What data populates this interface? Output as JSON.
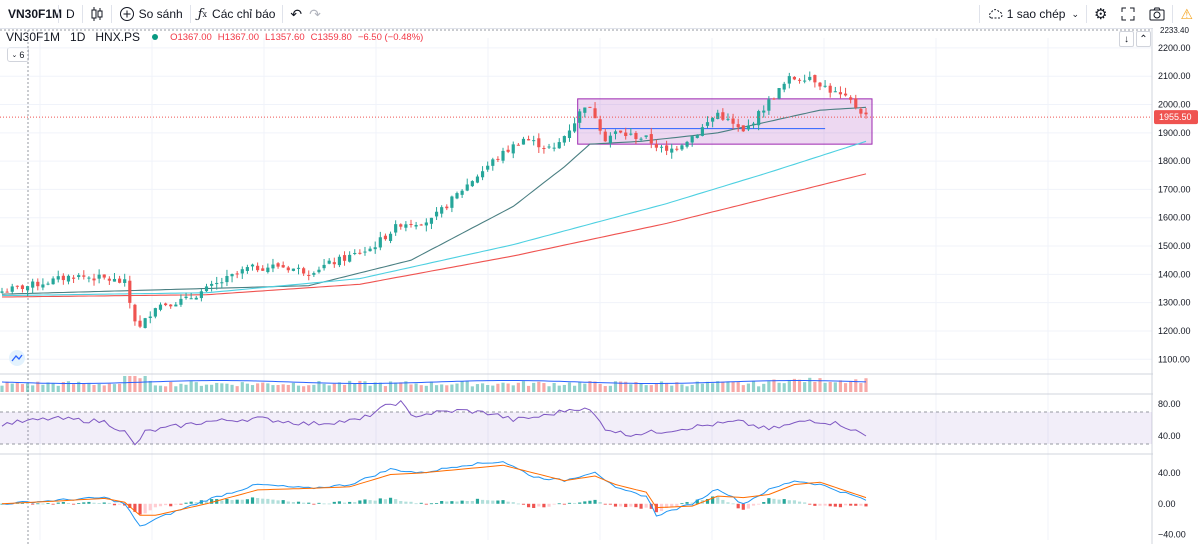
{
  "toolbar": {
    "symbol": "VN30F1M",
    "interval": "D",
    "compare_label": "So sánh",
    "indicators_label": "Các chỉ báo",
    "layout_label": "1 sao chép"
  },
  "legend": {
    "symbol": "VN30F1M",
    "interval": "1D",
    "exchange": "HNX.PS",
    "open": "O1367.00",
    "high": "H1367.00",
    "low": "L1357.60",
    "close": "C1359.80",
    "change": "−6.50 (−0.48%)",
    "indicator_count": "6"
  },
  "colors": {
    "up": "#26a69a",
    "down": "#ef5350",
    "ma_short": "#4a7f82",
    "ma_mid": "#4dd0e1",
    "ma_long": "#ef5350",
    "rsi": "#7e57c2",
    "macd": "#2196f3",
    "signal": "#ff6d00",
    "box": "#9c27b0"
  },
  "chart_data": [
    {
      "type": "line",
      "name": "price",
      "x_points": 170,
      "anchors_x": [
        0,
        8,
        14,
        20,
        24,
        25,
        26,
        27,
        30,
        36,
        42,
        48,
        54,
        60,
        66,
        72,
        78,
        84,
        90,
        96,
        102,
        108,
        112,
        114,
        116,
        118,
        120,
        126,
        130,
        136,
        140,
        145,
        150,
        154,
        158,
        162,
        166,
        169
      ],
      "anchors_close": [
        1340,
        1370,
        1395,
        1385,
        1370,
        1300,
        1240,
        1210,
        1290,
        1310,
        1365,
        1420,
        1430,
        1410,
        1450,
        1490,
        1580,
        1590,
        1700,
        1800,
        1880,
        1840,
        1940,
        2000,
        1960,
        1880,
        1900,
        1880,
        1830,
        1900,
        1970,
        1900,
        2010,
        2090,
        2100,
        2050,
        2010,
        1960
      ],
      "y_ticks": [
        1100,
        1200,
        1300,
        1400,
        1500,
        1600,
        1700,
        1800,
        1900,
        2000,
        2100,
        2200
      ],
      "ylim": [
        1055,
        2235
      ],
      "last_price": "1955.50",
      "top_label": "2233.40",
      "moving_averages": [
        {
          "anchors_x": [
            0,
            30,
            60,
            80,
            100,
            110,
            115,
            125,
            140,
            160,
            169
          ],
          "values": [
            1330,
            1345,
            1360,
            1450,
            1640,
            1780,
            1860,
            1870,
            1900,
            1980,
            1990
          ]
        },
        {
          "anchors_x": [
            0,
            40,
            70,
            100,
            130,
            150,
            169
          ],
          "values": [
            1325,
            1335,
            1385,
            1505,
            1650,
            1760,
            1870
          ]
        },
        {
          "anchors_x": [
            0,
            40,
            70,
            100,
            130,
            150,
            169
          ],
          "values": [
            1320,
            1328,
            1365,
            1465,
            1580,
            1670,
            1755
          ]
        }
      ],
      "box": {
        "x_start": 113,
        "x_end": 169,
        "top": 2020,
        "bottom": 1860
      },
      "hline": {
        "x_start": 113,
        "x_end": 161,
        "value": 1915
      }
    },
    {
      "type": "line",
      "name": "rsi",
      "y_ticks": [
        40,
        80
      ],
      "ylim": [
        20,
        90
      ],
      "band": [
        30,
        70
      ],
      "anchors_x": [
        0,
        10,
        20,
        24,
        26,
        28,
        34,
        40,
        50,
        60,
        70,
        76,
        78,
        80,
        86,
        90,
        96,
        100,
        106,
        112,
        115,
        118,
        122,
        128,
        136,
        144,
        150,
        158,
        164,
        169
      ],
      "values": [
        55,
        62,
        58,
        45,
        28,
        45,
        52,
        58,
        62,
        55,
        60,
        80,
        82,
        65,
        70,
        72,
        68,
        60,
        65,
        75,
        72,
        50,
        42,
        45,
        52,
        58,
        48,
        60,
        55,
        40
      ]
    },
    {
      "type": "line",
      "name": "macd",
      "y_ticks": [
        -40,
        0,
        40
      ],
      "ylim": [
        -47,
        62
      ],
      "anchors_x": [
        0,
        12,
        20,
        24,
        27,
        30,
        40,
        50,
        60,
        68,
        76,
        82,
        90,
        98,
        104,
        110,
        116,
        120,
        126,
        128,
        135,
        140,
        145,
        150,
        155,
        160,
        169
      ],
      "macd": [
        0,
        5,
        8,
        0,
        -30,
        -20,
        5,
        25,
        20,
        25,
        45,
        40,
        50,
        55,
        35,
        30,
        42,
        20,
        10,
        -15,
        0,
        20,
        0,
        18,
        30,
        25,
        5
      ],
      "signal": [
        0,
        4,
        7,
        2,
        -15,
        -15,
        0,
        18,
        20,
        22,
        38,
        40,
        45,
        50,
        40,
        30,
        36,
        25,
        15,
        -5,
        -3,
        10,
        8,
        12,
        25,
        28,
        8
      ]
    }
  ]
}
